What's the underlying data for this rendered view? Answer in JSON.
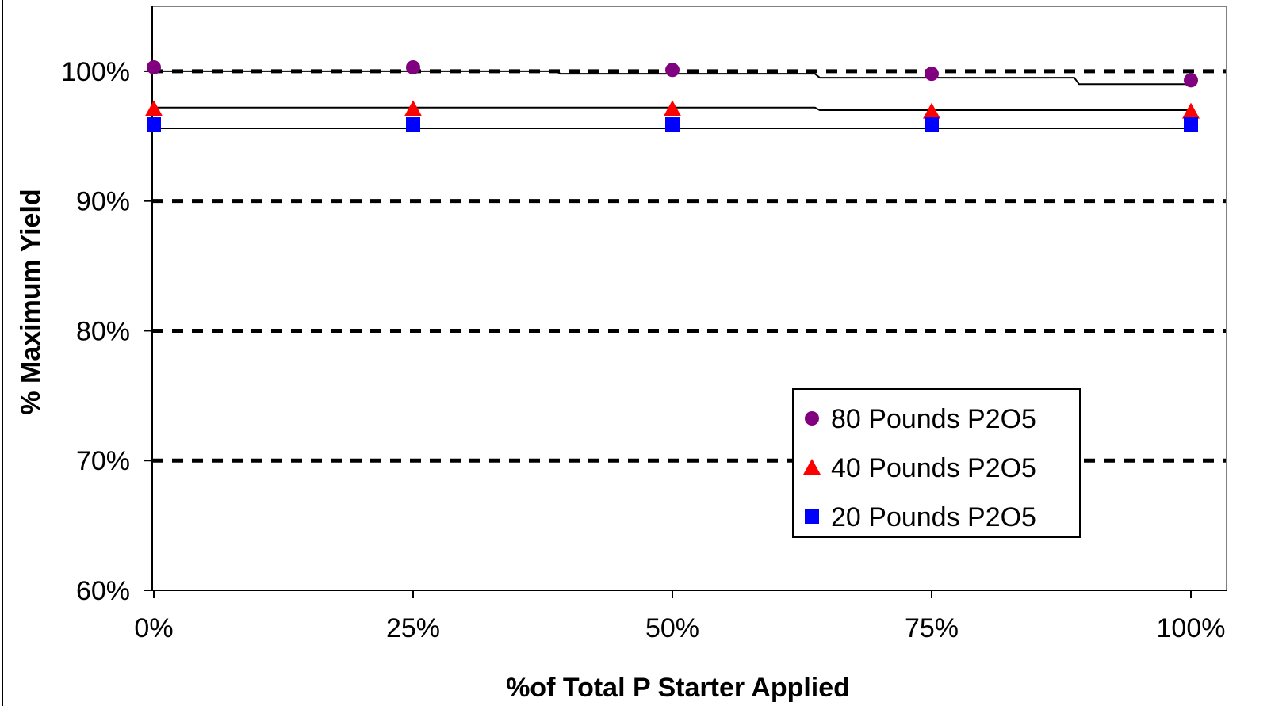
{
  "chart_data": {
    "type": "scatter",
    "title": "",
    "xlabel": "%of Total P Starter Applied",
    "ylabel": "% Maximum Yield",
    "x": [
      0,
      25,
      50,
      75,
      100
    ],
    "x_tick_labels": [
      "0%",
      "25%",
      "50%",
      "75%",
      "100%"
    ],
    "y_tick_values": [
      60,
      70,
      80,
      90,
      100
    ],
    "y_tick_labels": [
      "60%",
      "70%",
      "80%",
      "90%",
      "100%"
    ],
    "xlim": [
      0,
      105
    ],
    "ylim": [
      60,
      105
    ],
    "grid": "horizontal dashed at 70%, 80%, 90%, 100%",
    "legend_position": "bottom-right",
    "series": [
      {
        "name": "80 Pounds P2O5",
        "marker": "circle",
        "color": "#800080",
        "values": [
          100.3,
          100.3,
          100.1,
          99.8,
          99.3
        ],
        "trend": [
          100,
          100,
          99.8,
          99.5,
          99.0
        ]
      },
      {
        "name": "40 Pounds P2O5",
        "marker": "triangle",
        "color": "#ff0000",
        "values": [
          97.1,
          97.1,
          97.1,
          96.9,
          96.9
        ],
        "trend": [
          97.2,
          97.2,
          97.2,
          97.0,
          97.0
        ]
      },
      {
        "name": "20 Pounds P2O5",
        "marker": "square",
        "color": "#0000ff",
        "values": [
          95.9,
          95.9,
          95.9,
          95.9,
          95.9
        ],
        "trend": [
          95.6,
          95.6,
          95.6,
          95.6,
          95.6
        ]
      }
    ]
  }
}
